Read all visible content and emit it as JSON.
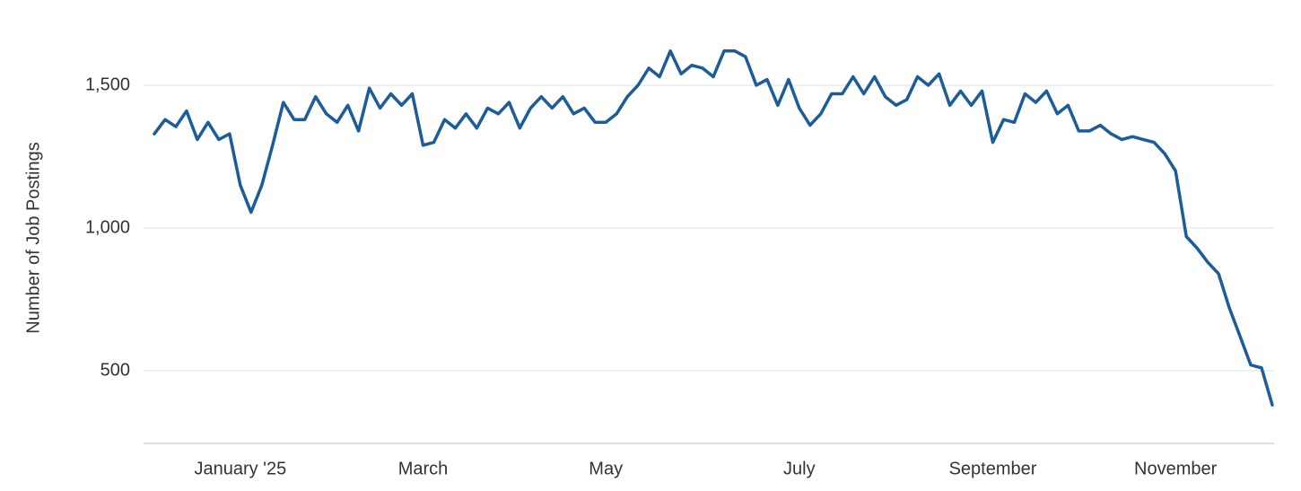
{
  "chart_data": {
    "type": "line",
    "y_axis_title": "Number of Job Postings",
    "categories": [
      null,
      null,
      null,
      null,
      null,
      null,
      null,
      null,
      "January '25",
      null,
      null,
      null,
      null,
      null,
      null,
      null,
      null,
      null,
      null,
      null,
      null,
      null,
      null,
      null,
      null,
      "March",
      null,
      null,
      null,
      null,
      null,
      null,
      null,
      null,
      null,
      null,
      null,
      null,
      null,
      null,
      null,
      null,
      "May",
      null,
      null,
      null,
      null,
      null,
      null,
      null,
      null,
      null,
      null,
      null,
      null,
      null,
      null,
      null,
      null,
      null,
      "July",
      null,
      null,
      null,
      null,
      null,
      null,
      null,
      null,
      null,
      null,
      null,
      null,
      null,
      null,
      null,
      null,
      null,
      "September",
      null,
      null,
      null,
      null,
      null,
      null,
      null,
      null,
      null,
      null,
      null,
      null,
      null,
      null,
      null,
      null,
      "November",
      null,
      null,
      null,
      null,
      null,
      null,
      null,
      null,
      null
    ],
    "series": [
      {
        "color": "#1b5c99",
        "values": [
          1330,
          1380,
          1355,
          1410,
          1310,
          1370,
          1310,
          1330,
          1150,
          1055,
          1150,
          1290,
          1440,
          1380,
          1380,
          1460,
          1400,
          1370,
          1430,
          1340,
          1490,
          1420,
          1470,
          1430,
          1470,
          1290,
          1300,
          1380,
          1350,
          1400,
          1350,
          1420,
          1400,
          1440,
          1350,
          1420,
          1460,
          1420,
          1460,
          1400,
          1420,
          1370,
          1370,
          1400,
          1460,
          1500,
          1560,
          1530,
          1620,
          1540,
          1570,
          1560,
          1530,
          1620,
          1620,
          1600,
          1500,
          1520,
          1430,
          1520,
          1420,
          1360,
          1400,
          1470,
          1470,
          1530,
          1470,
          1530,
          1460,
          1430,
          1450,
          1530,
          1500,
          1540,
          1430,
          1480,
          1430,
          1480,
          1300,
          1380,
          1370,
          1470,
          1440,
          1480,
          1400,
          1430,
          1340,
          1340,
          1360,
          1330,
          1310,
          1320,
          1310,
          1300,
          1260,
          1200,
          970,
          930,
          880,
          840,
          720,
          620,
          520,
          510,
          380
        ]
      }
    ],
    "ylim": [
      250,
      1750
    ],
    "yticks": [
      500,
      {
        "value": 1000,
        "label": "1,000"
      },
      {
        "value": 1500,
        "label": "1,500"
      }
    ],
    "grid": true
  }
}
